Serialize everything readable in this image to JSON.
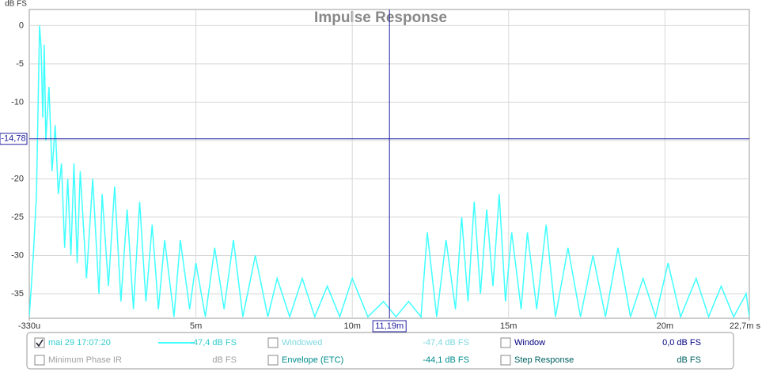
{
  "chart_data": {
    "type": "line",
    "title": "Impulse Response",
    "y_label": "dB FS",
    "x": [
      -0.00033,
      -0.0002,
      -0.0001,
      0,
      5e-05,
      0.0001,
      0.00015,
      0.0002,
      0.0003,
      0.0004,
      0.0005,
      0.0006,
      0.0007,
      0.0008,
      0.0009,
      0.001,
      0.0011,
      0.0012,
      0.0013,
      0.0015,
      0.0017,
      0.0019,
      0.002,
      0.0022,
      0.0024,
      0.0026,
      0.0028,
      0.003,
      0.0032,
      0.0034,
      0.0036,
      0.0038,
      0.004,
      0.0043,
      0.0045,
      0.0048,
      0.005,
      0.0053,
      0.0056,
      0.0059,
      0.0062,
      0.0065,
      0.0069,
      0.0073,
      0.0076,
      0.008,
      0.0084,
      0.0088,
      0.0092,
      0.0096,
      0.01,
      0.0105,
      0.011,
      0.0114,
      0.0118,
      0.0122,
      0.0124,
      0.0127,
      0.013,
      0.0133,
      0.0135,
      0.0137,
      0.0139,
      0.0141,
      0.0143,
      0.0145,
      0.0147,
      0.0149,
      0.0151,
      0.0154,
      0.0156,
      0.0159,
      0.0162,
      0.0165,
      0.0169,
      0.0173,
      0.0177,
      0.0181,
      0.0185,
      0.0189,
      0.0193,
      0.0197,
      0.0201,
      0.0205,
      0.021,
      0.0214,
      0.0218,
      0.0222,
      0.0226,
      0.0227
    ],
    "series": [
      {
        "name": "mai 29 17:07:20",
        "color": "#40ffff",
        "reading": "-47,4 dB FS",
        "checked": true,
        "values": [
          -38,
          -30,
          -22,
          0,
          -3,
          -12,
          -2.5,
          -15,
          -8,
          -19,
          -13,
          -22,
          -18,
          -29,
          -20,
          -30,
          -18,
          -31,
          -19,
          -33,
          -20,
          -35,
          -22,
          -34,
          -21,
          -36,
          -24,
          -37,
          -23,
          -36,
          -26,
          -37,
          -28,
          -38,
          -28,
          -37,
          -31,
          -38,
          -29,
          -37,
          -28,
          -38,
          -30,
          -38,
          -33,
          -38,
          -33,
          -38,
          -34,
          -38,
          -33,
          -38,
          -36,
          -38,
          -36,
          -38,
          -27,
          -38,
          -28,
          -37,
          -25,
          -36,
          -23,
          -35,
          -24,
          -34,
          -22,
          -36,
          -27,
          -37,
          -27,
          -37,
          -26,
          -38,
          -29,
          -38,
          -30,
          -38,
          -29,
          -38,
          -33,
          -38,
          -31,
          -38,
          -33,
          -38,
          -34,
          -38,
          -35,
          -38
        ]
      }
    ],
    "xlim": [
      -0.00033,
      0.0227
    ],
    "ylim": [
      -38.2,
      2.1
    ],
    "xticks": [
      {
        "value": -0.00033,
        "label": "-330u"
      },
      {
        "value": 0.005,
        "label": "5m"
      },
      {
        "value": 0.01,
        "label": "10m"
      },
      {
        "value": 0.015,
        "label": "15m"
      },
      {
        "value": 0.02,
        "label": "20m"
      },
      {
        "value": 0.0227,
        "label": "22,7m s"
      }
    ],
    "yticks": [
      0,
      -5,
      -10,
      -15,
      -20,
      -25,
      -30,
      -35
    ],
    "grid": true,
    "cursor": {
      "x": {
        "value": 0.01119,
        "label": "11,19m"
      },
      "y": {
        "value": -14.78,
        "label": "-14,78"
      }
    },
    "panel": [
      {
        "label": "Minimum Phase IR",
        "reading": "dB FS",
        "checked": false,
        "color": "#a0a0a0"
      },
      {
        "label": "Windowed",
        "reading": "-47,4 dB FS",
        "checked": false,
        "color": "#7fd8e0"
      },
      {
        "label": "Envelope (ETC)",
        "reading": "-44,1 dB FS",
        "checked": false,
        "color": "#008c8c"
      },
      {
        "label": "Window",
        "reading": "0,0 dB FS",
        "checked": false,
        "color": "#000080"
      },
      {
        "label": "Step Response",
        "reading": "dB FS",
        "checked": false,
        "color": "#006060"
      }
    ]
  }
}
